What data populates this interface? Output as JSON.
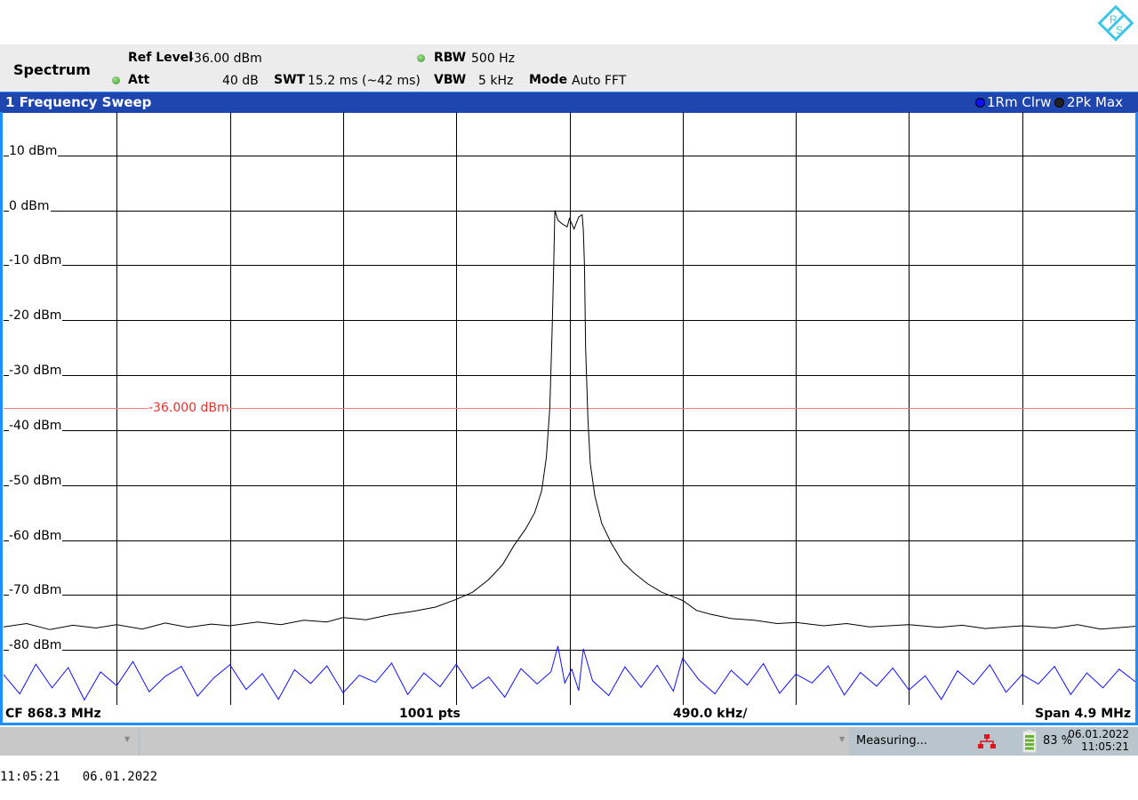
{
  "app": {
    "logo_text": "R&S"
  },
  "header": {
    "title": "Spectrum",
    "ref_level_label": "Ref Level",
    "ref_level_value": "-36.00 dBm",
    "att_label": "Att",
    "att_value": "40 dB",
    "swt_label": "SWT",
    "swt_value": "15.2 ms (~42 ms)",
    "rbw_label": "RBW",
    "rbw_value": "500 Hz",
    "vbw_label": "VBW",
    "vbw_value": "5 kHz",
    "mode_label": "Mode",
    "mode_value": "Auto FFT",
    "indicator_color": "#4caf3a"
  },
  "window": {
    "title": "1 Frequency Sweep",
    "traces": [
      {
        "label": "1Rm Clrw",
        "color": "#1010ff"
      },
      {
        "label": "2Pk Max",
        "color": "#000000"
      }
    ]
  },
  "footer": {
    "cf": "CF 868.3 MHz",
    "pts": "1001 pts",
    "div": "490.0 kHz/",
    "span": "Span 4.9 MHz"
  },
  "status": {
    "message": "Measuring...",
    "battery": "83 %",
    "battery_level": 0.83,
    "date": "06.01.2022",
    "time": "11:05:21",
    "network_color": "#e0141e"
  },
  "screen_timestamp": "11:05:21   06.01.2022",
  "chart_data": {
    "type": "line",
    "xlabel": "",
    "ylabel": "",
    "xlim": [
      865.85,
      870.75
    ],
    "ylim": [
      -90,
      17.9
    ],
    "x_unit": "MHz",
    "ytick_values": [
      10,
      0,
      -10,
      -20,
      -30,
      -40,
      -50,
      -60,
      -70,
      -80
    ],
    "ytick_labels": [
      "10 dBm",
      "0 dBm",
      "-10 dBm",
      "-20 dBm",
      "-30 dBm",
      "-40 dBm",
      "-50 dBm",
      "-60 dBm",
      "-70 dBm",
      "-80 dBm"
    ],
    "x_divisions": 10,
    "grid": true,
    "reference_line": {
      "value": -36,
      "label": "-36.000 dBm",
      "color": "#e8322a"
    },
    "series": [
      {
        "name": "2Pk Max",
        "color": "#000000",
        "points": [
          [
            865.85,
            -75.8
          ],
          [
            865.95,
            -75.2
          ],
          [
            866.05,
            -76.3
          ],
          [
            866.15,
            -75.5
          ],
          [
            866.25,
            -76.0
          ],
          [
            866.34,
            -75.4
          ],
          [
            866.45,
            -76.2
          ],
          [
            866.55,
            -75.1
          ],
          [
            866.65,
            -75.9
          ],
          [
            866.75,
            -75.3
          ],
          [
            866.83,
            -75.6
          ],
          [
            866.95,
            -74.9
          ],
          [
            867.05,
            -75.4
          ],
          [
            867.15,
            -74.6
          ],
          [
            867.25,
            -74.9
          ],
          [
            867.32,
            -74.1
          ],
          [
            867.42,
            -74.5
          ],
          [
            867.52,
            -73.6
          ],
          [
            867.62,
            -73.0
          ],
          [
            867.72,
            -72.2
          ],
          [
            867.81,
            -70.8
          ],
          [
            867.88,
            -69.5
          ],
          [
            867.95,
            -67.2
          ],
          [
            868.01,
            -64.5
          ],
          [
            868.06,
            -61.0
          ],
          [
            868.11,
            -58.0
          ],
          [
            868.15,
            -55.0
          ],
          [
            868.18,
            -51.0
          ],
          [
            868.2,
            -45.0
          ],
          [
            868.215,
            -36.0
          ],
          [
            868.225,
            -22.0
          ],
          [
            868.232,
            -10.0
          ],
          [
            868.237,
            0.0
          ],
          [
            868.25,
            -1.8
          ],
          [
            868.27,
            -2.5
          ],
          [
            868.29,
            -3.0
          ],
          [
            868.3,
            -1.5
          ],
          [
            868.32,
            -3.4
          ],
          [
            868.34,
            -1.2
          ],
          [
            868.355,
            -0.8
          ],
          [
            868.36,
            -3.5
          ],
          [
            868.365,
            -10.0
          ],
          [
            868.37,
            -25.0
          ],
          [
            868.38,
            -38.0
          ],
          [
            868.39,
            -46.0
          ],
          [
            868.41,
            -52.0
          ],
          [
            868.44,
            -57.0
          ],
          [
            868.48,
            -60.5
          ],
          [
            868.53,
            -64.0
          ],
          [
            868.58,
            -66.0
          ],
          [
            868.64,
            -68.0
          ],
          [
            868.7,
            -69.5
          ],
          [
            868.79,
            -71.0
          ],
          [
            868.85,
            -72.8
          ],
          [
            868.91,
            -73.5
          ],
          [
            869.0,
            -74.3
          ],
          [
            869.1,
            -74.6
          ],
          [
            869.2,
            -75.2
          ],
          [
            869.28,
            -75.0
          ],
          [
            869.4,
            -75.6
          ],
          [
            869.5,
            -75.2
          ],
          [
            869.6,
            -75.8
          ],
          [
            869.77,
            -75.4
          ],
          [
            869.9,
            -75.9
          ],
          [
            870.0,
            -75.5
          ],
          [
            870.1,
            -76.1
          ],
          [
            870.26,
            -75.6
          ],
          [
            870.4,
            -76.0
          ],
          [
            870.5,
            -75.4
          ],
          [
            870.6,
            -76.2
          ],
          [
            870.75,
            -75.7
          ]
        ]
      },
      {
        "name": "1Rm Clrw",
        "color": "#1010ff",
        "points": [
          [
            865.85,
            -84.5
          ],
          [
            865.92,
            -88.0
          ],
          [
            865.99,
            -82.6
          ],
          [
            866.06,
            -86.9
          ],
          [
            866.13,
            -83.2
          ],
          [
            866.2,
            -89.1
          ],
          [
            866.27,
            -84.0
          ],
          [
            866.34,
            -86.5
          ],
          [
            866.41,
            -82.1
          ],
          [
            866.48,
            -87.6
          ],
          [
            866.55,
            -84.8
          ],
          [
            866.62,
            -83.0
          ],
          [
            866.69,
            -88.4
          ],
          [
            866.76,
            -85.1
          ],
          [
            866.83,
            -82.7
          ],
          [
            866.9,
            -87.2
          ],
          [
            866.97,
            -84.3
          ],
          [
            867.04,
            -89.0
          ],
          [
            867.11,
            -83.6
          ],
          [
            867.18,
            -86.1
          ],
          [
            867.25,
            -82.9
          ],
          [
            867.32,
            -87.8
          ],
          [
            867.39,
            -84.6
          ],
          [
            867.46,
            -85.9
          ],
          [
            867.53,
            -82.4
          ],
          [
            867.6,
            -88.1
          ],
          [
            867.67,
            -84.2
          ],
          [
            867.74,
            -86.7
          ],
          [
            867.81,
            -82.6
          ],
          [
            867.88,
            -87.0
          ],
          [
            867.95,
            -84.9
          ],
          [
            868.02,
            -88.6
          ],
          [
            868.09,
            -83.4
          ],
          [
            868.16,
            -86.2
          ],
          [
            868.22,
            -84.0
          ],
          [
            868.25,
            -79.3
          ],
          [
            868.28,
            -86.0
          ],
          [
            868.31,
            -83.5
          ],
          [
            868.34,
            -87.4
          ],
          [
            868.36,
            -79.8
          ],
          [
            868.4,
            -85.6
          ],
          [
            868.47,
            -88.3
          ],
          [
            868.54,
            -83.1
          ],
          [
            868.61,
            -86.8
          ],
          [
            868.68,
            -82.8
          ],
          [
            868.75,
            -87.5
          ],
          [
            868.79,
            -81.5
          ],
          [
            868.86,
            -85.4
          ],
          [
            868.93,
            -88.0
          ],
          [
            869.0,
            -83.7
          ],
          [
            869.07,
            -86.4
          ],
          [
            869.14,
            -82.5
          ],
          [
            869.21,
            -87.9
          ],
          [
            869.28,
            -84.4
          ],
          [
            869.35,
            -86.0
          ],
          [
            869.42,
            -82.9
          ],
          [
            869.49,
            -88.2
          ],
          [
            869.56,
            -84.1
          ],
          [
            869.63,
            -86.6
          ],
          [
            869.7,
            -83.3
          ],
          [
            869.77,
            -87.3
          ],
          [
            869.84,
            -84.7
          ],
          [
            869.91,
            -89.0
          ],
          [
            869.98,
            -83.8
          ],
          [
            870.05,
            -86.3
          ],
          [
            870.12,
            -82.7
          ],
          [
            870.19,
            -87.7
          ],
          [
            870.26,
            -84.5
          ],
          [
            870.33,
            -86.2
          ],
          [
            870.4,
            -83.0
          ],
          [
            870.47,
            -88.1
          ],
          [
            870.54,
            -84.2
          ],
          [
            870.61,
            -86.9
          ],
          [
            870.68,
            -83.5
          ],
          [
            870.75,
            -85.8
          ]
        ]
      }
    ]
  }
}
